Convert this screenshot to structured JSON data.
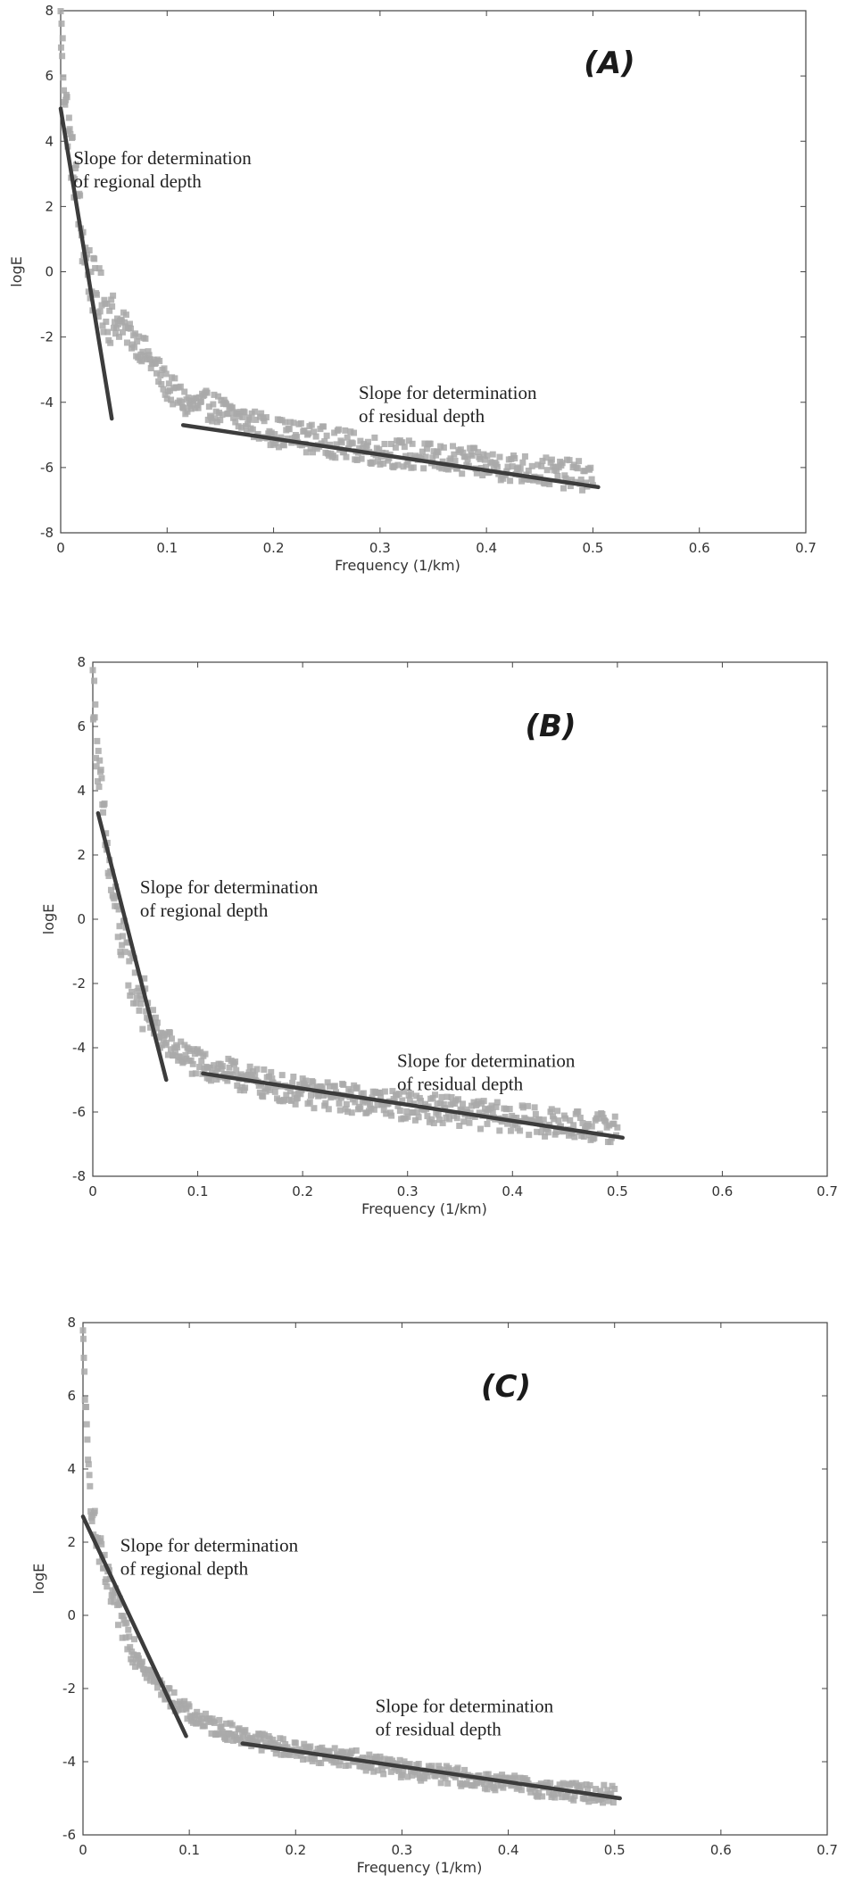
{
  "chart_data": [
    {
      "type": "scatter",
      "panel_label": "(A)",
      "xlabel": "Frequency (1/km)",
      "ylabel": "logE",
      "xlim": [
        0,
        0.7
      ],
      "ylim": [
        -8,
        8
      ],
      "xticks": [
        "0",
        "0.1",
        "0.2",
        "0.3",
        "0.4",
        "0.5",
        "0.6",
        "0.7"
      ],
      "yticks": [
        "8",
        "6",
        "4",
        "2",
        "0",
        "-2",
        "-4",
        "-6",
        "-8"
      ],
      "grid": false,
      "annotations": [
        {
          "lines": [
            "Slope for determination",
            "of regional depth"
          ],
          "x": 0.012,
          "y": 3.3
        },
        {
          "lines": [
            "Slope for determination",
            "of residual depth"
          ],
          "x": 0.28,
          "y": -3.9
        }
      ],
      "spectrum": [
        [
          0.0,
          7.6
        ],
        [
          0.003,
          6.0
        ],
        [
          0.006,
          4.8
        ],
        [
          0.01,
          3.6
        ],
        [
          0.015,
          2.5
        ],
        [
          0.02,
          1.1
        ],
        [
          0.025,
          0.2
        ],
        [
          0.03,
          -0.4
        ],
        [
          0.04,
          -1.0
        ],
        [
          0.05,
          -1.5
        ],
        [
          0.06,
          -1.7
        ],
        [
          0.07,
          -2.1
        ],
        [
          0.08,
          -2.5
        ],
        [
          0.09,
          -3.0
        ],
        [
          0.1,
          -3.5
        ],
        [
          0.12,
          -4.1
        ],
        [
          0.14,
          -4.1
        ],
        [
          0.16,
          -4.4
        ],
        [
          0.2,
          -4.9
        ],
        [
          0.25,
          -5.2
        ],
        [
          0.3,
          -5.5
        ],
        [
          0.35,
          -5.7
        ],
        [
          0.4,
          -5.9
        ],
        [
          0.45,
          -6.1
        ],
        [
          0.5,
          -6.3
        ]
      ],
      "series": [
        {
          "name": "",
          "x": [
            0.0,
            0.048
          ],
          "y": [
            5.0,
            -4.5
          ]
        },
        {
          "name": "",
          "x": [
            0.115,
            0.505
          ],
          "y": [
            -4.7,
            -6.6
          ]
        }
      ]
    },
    {
      "type": "scatter",
      "panel_label": "(B)",
      "xlabel": "Frequency (1/km)",
      "ylabel": "logE",
      "xlim": [
        0,
        0.7
      ],
      "ylim": [
        -8,
        8
      ],
      "xticks": [
        "0",
        "0.1",
        "0.2",
        "0.3",
        "0.4",
        "0.5",
        "0.6",
        "0.7"
      ],
      "yticks": [
        "8",
        "6",
        "4",
        "2",
        "0",
        "-2",
        "-4",
        "-6",
        "-8"
      ],
      "grid": false,
      "annotations": [
        {
          "lines": [
            "Slope for determination",
            "of regional depth"
          ],
          "x": 0.045,
          "y": 0.8
        },
        {
          "lines": [
            "Slope for determination",
            "of residual depth"
          ],
          "x": 0.29,
          "y": -4.6
        }
      ],
      "spectrum": [
        [
          0.0,
          7.3
        ],
        [
          0.003,
          5.8
        ],
        [
          0.007,
          4.2
        ],
        [
          0.012,
          2.5
        ],
        [
          0.018,
          1.0
        ],
        [
          0.025,
          -0.3
        ],
        [
          0.035,
          -1.5
        ],
        [
          0.045,
          -2.4
        ],
        [
          0.055,
          -3.1
        ],
        [
          0.065,
          -3.7
        ],
        [
          0.08,
          -4.1
        ],
        [
          0.1,
          -4.5
        ],
        [
          0.13,
          -4.8
        ],
        [
          0.16,
          -5.1
        ],
        [
          0.2,
          -5.4
        ],
        [
          0.25,
          -5.6
        ],
        [
          0.3,
          -5.8
        ],
        [
          0.35,
          -6.0
        ],
        [
          0.4,
          -6.2
        ],
        [
          0.45,
          -6.4
        ],
        [
          0.5,
          -6.5
        ]
      ],
      "series": [
        {
          "name": "",
          "x": [
            0.005,
            0.07
          ],
          "y": [
            3.3,
            -5.0
          ]
        },
        {
          "name": "",
          "x": [
            0.105,
            0.505
          ],
          "y": [
            -4.8,
            -6.8
          ]
        }
      ]
    },
    {
      "type": "scatter",
      "panel_label": "(C)",
      "xlabel": "Frequency (1/km)",
      "ylabel": "logE",
      "xlim": [
        0,
        0.7
      ],
      "ylim": [
        -6,
        8
      ],
      "xticks": [
        "0",
        "0.1",
        "0.2",
        "0.3",
        "0.4",
        "0.5",
        "0.6",
        "0.7"
      ],
      "yticks": [
        "8",
        "6",
        "4",
        "2",
        "0",
        "-2",
        "-4",
        "-6"
      ],
      "grid": false,
      "annotations": [
        {
          "lines": [
            "Slope for determination",
            "of regional depth"
          ],
          "x": 0.035,
          "y": 1.75
        },
        {
          "lines": [
            "Slope for determination",
            "of residual depth"
          ],
          "x": 0.275,
          "y": -2.65
        }
      ],
      "spectrum": [
        [
          0.0,
          7.5
        ],
        [
          0.002,
          6.2
        ],
        [
          0.004,
          4.4
        ],
        [
          0.007,
          3.3
        ],
        [
          0.012,
          2.2
        ],
        [
          0.02,
          1.2
        ],
        [
          0.03,
          0.3
        ],
        [
          0.04,
          -0.4
        ],
        [
          0.05,
          -1.0
        ],
        [
          0.06,
          -1.5
        ],
        [
          0.08,
          -2.2
        ],
        [
          0.1,
          -2.7
        ],
        [
          0.12,
          -3.0
        ],
        [
          0.15,
          -3.3
        ],
        [
          0.2,
          -3.7
        ],
        [
          0.25,
          -3.9
        ],
        [
          0.3,
          -4.2
        ],
        [
          0.35,
          -4.4
        ],
        [
          0.4,
          -4.6
        ],
        [
          0.45,
          -4.8
        ],
        [
          0.5,
          -4.9
        ]
      ],
      "series": [
        {
          "name": "",
          "x": [
            0.0,
            0.097
          ],
          "y": [
            2.7,
            -3.3
          ]
        },
        {
          "name": "",
          "x": [
            0.15,
            0.505
          ],
          "y": [
            -3.5,
            -5.0
          ]
        }
      ]
    }
  ],
  "colors": {
    "scatter": "#a9a9a9",
    "fit_line": "#3c3c3c",
    "axes": "#444444"
  }
}
